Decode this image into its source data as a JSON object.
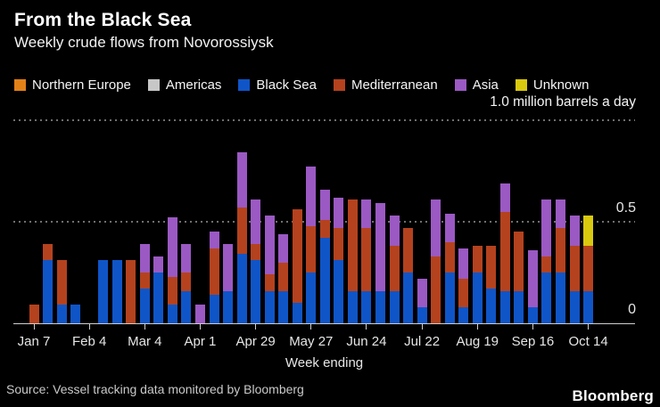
{
  "header": {
    "title": "From the Black Sea",
    "subtitle": "Weekly crude flows from Novorossiysk"
  },
  "footer": {
    "source": "Source: Vessel tracking data monitored by Bloomberg",
    "logo": "Bloomberg"
  },
  "colors": {
    "background": "#000000",
    "axis": "#cfcfcf",
    "grid_dot": "#6f6f6f",
    "title_text": "#ffffff",
    "tick_text": "#e6e6e6",
    "muted_text": "#c9c9c9"
  },
  "chart_data": {
    "type": "bar",
    "stacked": true,
    "title": "From the Black Sea",
    "subtitle": "Weekly crude flows from Novorossiysk",
    "unit_label": "1.0 million barrels a day",
    "xlabel": "Week ending",
    "ylabel": "",
    "ylim": [
      0,
      1.0
    ],
    "grid": true,
    "legend_position": "top",
    "gridline_values": [
      0.5,
      1.0
    ],
    "yticks": [
      {
        "value": 0,
        "label": "0"
      },
      {
        "value": 0.5,
        "label": "0.5"
      }
    ],
    "x_tick_every": 4,
    "x_tick_labels": [
      "Jan 7",
      "Feb 4",
      "Mar 4",
      "Apr 1",
      "Apr 29",
      "May 27",
      "Jun 24",
      "Jul 22",
      "Aug 19",
      "Sep 16",
      "Oct 14"
    ],
    "categories": [
      "Jan 7",
      "Jan 14",
      "Jan 21",
      "Jan 28",
      "Feb 4",
      "Feb 11",
      "Feb 18",
      "Feb 25",
      "Mar 4",
      "Mar 11",
      "Mar 18",
      "Mar 25",
      "Apr 1",
      "Apr 8",
      "Apr 15",
      "Apr 22",
      "Apr 29",
      "May 6",
      "May 13",
      "May 20",
      "May 27",
      "Jun 3",
      "Jun 10",
      "Jun 17",
      "Jun 24",
      "Jul 1",
      "Jul 8",
      "Jul 15",
      "Jul 22",
      "Jul 29",
      "Aug 5",
      "Aug 12",
      "Aug 19",
      "Aug 26",
      "Sep 2",
      "Sep 9",
      "Sep 16",
      "Sep 23",
      "Sep 30",
      "Oct 7",
      "Oct 14"
    ],
    "series": [
      {
        "name": "Northern Europe",
        "color": "#e28118",
        "values": [
          0,
          0,
          0,
          0,
          0,
          0,
          0,
          0,
          0,
          0,
          0,
          0,
          0,
          0,
          0,
          0,
          0,
          0,
          0,
          0,
          0,
          0,
          0,
          0,
          0,
          0,
          0,
          0,
          0,
          0,
          0,
          0,
          0,
          0,
          0,
          0,
          0,
          0,
          0,
          0,
          0
        ]
      },
      {
        "name": "Americas",
        "color": "#c7c7c7",
        "values": [
          0,
          0,
          0,
          0,
          0,
          0,
          0,
          0,
          0,
          0,
          0,
          0,
          0,
          0,
          0,
          0,
          0,
          0,
          0,
          0,
          0,
          0,
          0,
          0,
          0,
          0,
          0,
          0,
          0,
          0,
          0,
          0,
          0,
          0,
          0,
          0,
          0,
          0,
          0,
          0,
          0
        ]
      },
      {
        "name": "Black Sea",
        "color": "#0f55c8",
        "values": [
          0,
          0.31,
          0.09,
          0.09,
          0,
          0.31,
          0.31,
          0,
          0.17,
          0.25,
          0.09,
          0.16,
          0,
          0.14,
          0.16,
          0.34,
          0.31,
          0.16,
          0.16,
          0.1,
          0.25,
          0.42,
          0.31,
          0.16,
          0.16,
          0.16,
          0.16,
          0.25,
          0.08,
          0,
          0.25,
          0.08,
          0.25,
          0.17,
          0.16,
          0.16,
          0.08,
          0.25,
          0.25,
          0.16,
          0.16
        ]
      },
      {
        "name": "Mediterranean",
        "color": "#b5421e",
        "values": [
          0.09,
          0.08,
          0.22,
          0,
          0,
          0,
          0,
          0.31,
          0.08,
          0,
          0.14,
          0.09,
          0,
          0.23,
          0,
          0.23,
          0.08,
          0.08,
          0.14,
          0.46,
          0.23,
          0.09,
          0.16,
          0.45,
          0.31,
          0,
          0.22,
          0.22,
          0,
          0.33,
          0.15,
          0.14,
          0.13,
          0.21,
          0.39,
          0.29,
          0,
          0.08,
          0.22,
          0.22,
          0.22
        ]
      },
      {
        "name": "Asia",
        "color": "#9b59c3",
        "values": [
          0,
          0,
          0,
          0,
          0,
          0,
          0,
          0,
          0.14,
          0.08,
          0.29,
          0.14,
          0.09,
          0.08,
          0.23,
          0.27,
          0.22,
          0.29,
          0.14,
          0,
          0.29,
          0.15,
          0.15,
          0,
          0.14,
          0.43,
          0.15,
          0,
          0.14,
          0.28,
          0.14,
          0.15,
          0,
          0,
          0.14,
          0,
          0.28,
          0.28,
          0.14,
          0.15,
          0
        ]
      },
      {
        "name": "Unknown",
        "color": "#d9c90f",
        "values": [
          0,
          0,
          0,
          0,
          0,
          0,
          0,
          0,
          0,
          0,
          0,
          0,
          0,
          0,
          0,
          0,
          0,
          0,
          0,
          0,
          0,
          0,
          0,
          0,
          0,
          0,
          0,
          0,
          0,
          0,
          0,
          0,
          0,
          0,
          0,
          0,
          0,
          0,
          0,
          0,
          0.15
        ]
      }
    ]
  }
}
